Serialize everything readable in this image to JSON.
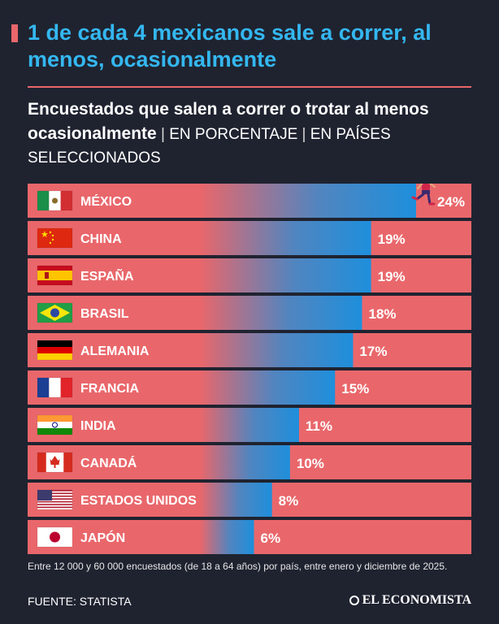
{
  "headline": "1 de cada 4 mexicanos sale a correr, al menos, ocasionalmente",
  "subtitle": {
    "bold": "Encuestados que salen a correr o trotar al menos ocasionalmente",
    "separator": " | ",
    "unit": "EN PORCENTAJE",
    "scope": "EN PAÍSES SELECCIONADOS"
  },
  "chart_data": {
    "type": "bar",
    "orientation": "horizontal",
    "categories": [
      "MÉXICO",
      "CHINA",
      "ESPAÑA",
      "BRASIL",
      "ALEMANIA",
      "FRANCIA",
      "INDIA",
      "CANADÁ",
      "ESTADOS UNIDOS",
      "JAPÓN"
    ],
    "values": [
      24,
      19,
      19,
      18,
      17,
      15,
      11,
      10,
      8,
      6
    ],
    "value_labels": [
      "24%",
      "19%",
      "19%",
      "18%",
      "17%",
      "15%",
      "11%",
      "10%",
      "8%",
      "6%"
    ],
    "flag_icons": [
      "mexico-flag-icon",
      "china-flag-icon",
      "spain-flag-icon",
      "brazil-flag-icon",
      "germany-flag-icon",
      "france-flag-icon",
      "india-flag-icon",
      "canada-flag-icon",
      "usa-flag-icon",
      "japan-flag-icon"
    ],
    "xlim": [
      0,
      24
    ],
    "colors": {
      "track": "#e9676b",
      "bar": "#1e8fdc",
      "text": "#ffffff"
    }
  },
  "note": "Entre 12 000 y 60 000 encuestados (de 18 a 64 años) por país, entre enero y diciembre de 2025.",
  "source": "FUENTE: STATISTA",
  "brand": "EL ECONOMISTA",
  "colors": {
    "background": "#1f2330",
    "accent": "#e9676b",
    "headline": "#34b7f0"
  }
}
